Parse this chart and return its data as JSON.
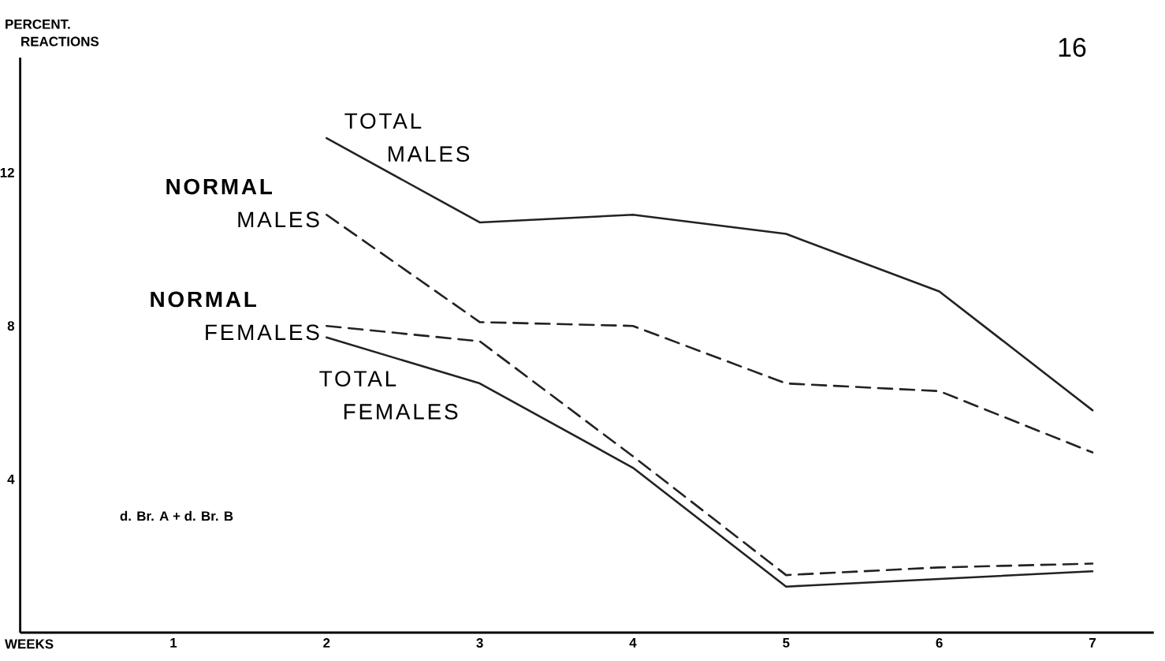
{
  "chart_data": {
    "type": "line",
    "xlabel": "WEEKS",
    "ylabel": "PERCENT. REACTIONS",
    "annotations": [
      "d. Br. A + d. Br. B",
      "16"
    ],
    "x": [
      2,
      3,
      4,
      5,
      6,
      7
    ],
    "series": [
      {
        "name": "TOTAL MALES",
        "color": "#222222",
        "line_style": "solid",
        "values": [
          12.9,
          10.7,
          10.9,
          10.4,
          8.9,
          5.8
        ]
      },
      {
        "name": "**NORMAL** MALES",
        "color": "#222222",
        "line_style": "dashed",
        "values": [
          10.9,
          8.1,
          8.0,
          6.5,
          6.3,
          4.7
        ]
      },
      {
        "name": "**NORMAL** FEMALES",
        "color": "#222222",
        "line_style": "dashed",
        "values": [
          8.0,
          7.6,
          4.6,
          1.5,
          1.7,
          1.8
        ]
      },
      {
        "name": "TOTAL FEMALES",
        "color": "#222222",
        "line_style": "solid",
        "values": [
          7.7,
          6.5,
          4.3,
          1.2,
          1.4,
          1.6
        ]
      }
    ],
    "xlim": [
      0,
      7.4
    ],
    "ylim": [
      0,
      15
    ],
    "xticks": [
      1,
      2,
      3,
      4,
      5,
      6,
      7
    ],
    "yticks": [
      4,
      8,
      12
    ]
  }
}
